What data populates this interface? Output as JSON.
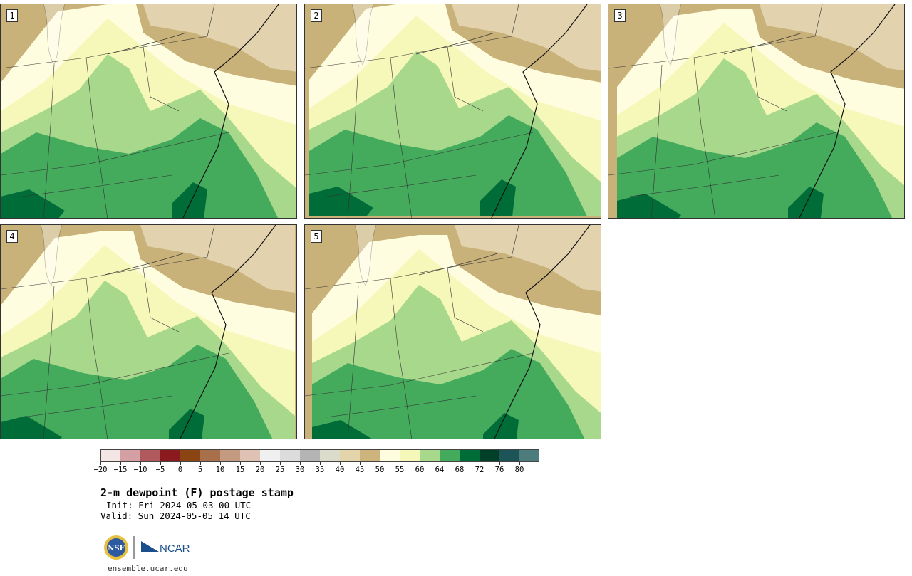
{
  "panels": [
    {
      "label": "1",
      "variant": 0
    },
    {
      "label": "2",
      "variant": 1
    },
    {
      "label": "3",
      "variant": 2
    },
    {
      "label": "4",
      "variant": 3
    },
    {
      "label": "5",
      "variant": 4
    }
  ],
  "colorbar": {
    "colors": [
      "#f5e6e6",
      "#d4a0a4",
      "#b05a5e",
      "#8b1a1e",
      "#8b4513",
      "#a8704a",
      "#c49a80",
      "#dfc2b4",
      "#f0f0f0",
      "#dcdcdc",
      "#b4b4b4",
      "#dcdccc",
      "#e4d4ac",
      "#ccb47c",
      "#fffde0",
      "#f5f8b8",
      "#a8d88c",
      "#44aa5c",
      "#006c38",
      "#004028",
      "#1c5458",
      "#4c7c7c"
    ],
    "tick_labels": [
      "−20",
      "−15",
      "−10",
      "−5",
      "0",
      "5",
      "10",
      "15",
      "20",
      "25",
      "30",
      "35",
      "40",
      "45",
      "50",
      "55",
      "60",
      "64",
      "68",
      "72",
      "76",
      "80"
    ]
  },
  "title": "2-m dewpoint (F) postage stamp",
  "init": "Init: Fri 2024-05-03 00 UTC",
  "valid": "Valid: Sun 2024-05-05 14 UTC",
  "logo": {
    "nsf_text": "NSF",
    "ncar_text": "NCAR"
  },
  "site": "ensemble.ucar.edu",
  "colors": {
    "tan": "#c9b27a",
    "lighttan": "#e2d3ae",
    "cream": "#fffde0",
    "paleyellow": "#f5f8b8",
    "lightgreen": "#a8d88c",
    "green": "#44aa5c",
    "darkgreen": "#006c38"
  }
}
